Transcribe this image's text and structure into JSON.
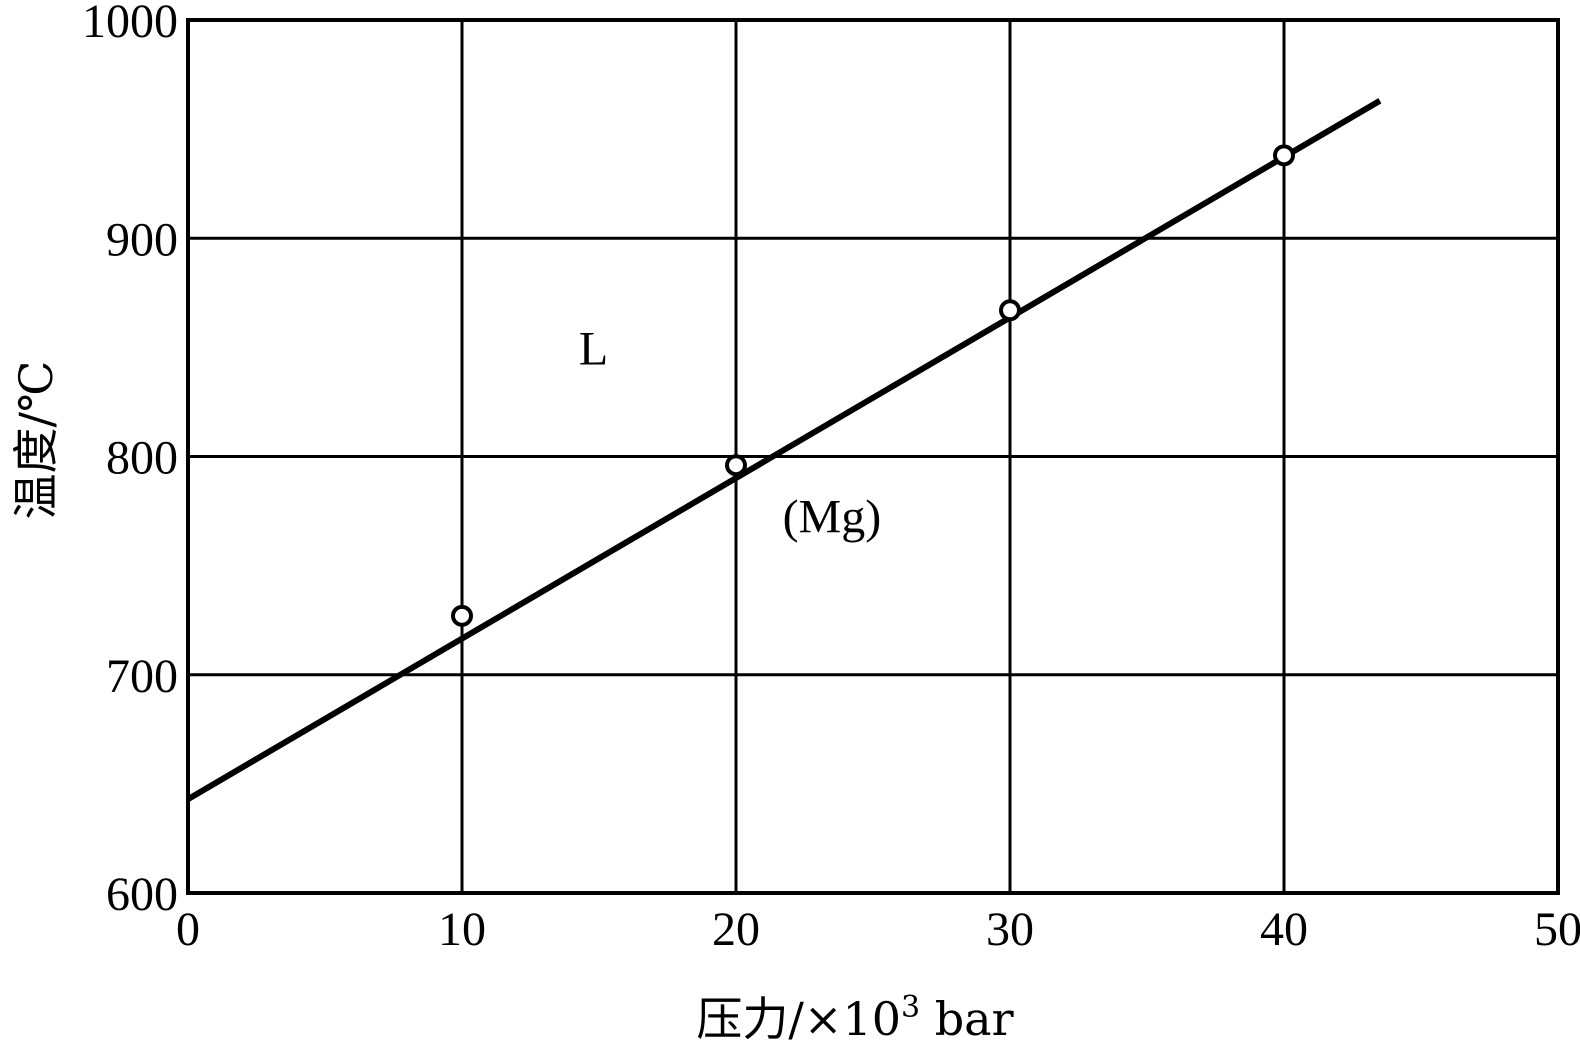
{
  "chart_data": {
    "type": "line",
    "title": "",
    "xlabel": "压力/×10",
    "xlabel_sup": "3",
    "xlabel_unit": " bar",
    "ylabel": "温度/℃",
    "xlim": [
      0,
      50
    ],
    "ylim": [
      600,
      1000
    ],
    "x_ticks": [
      0,
      10,
      20,
      30,
      40,
      50
    ],
    "y_ticks": [
      600,
      700,
      800,
      900,
      1000
    ],
    "x_tick_labels": [
      "0",
      "10",
      "20",
      "30",
      "40",
      "50"
    ],
    "y_tick_labels": [
      "600",
      "700",
      "800",
      "900",
      "1000"
    ],
    "grid": true,
    "series": [
      {
        "line": {
          "x": [
            0,
            43.5
          ],
          "y": [
            643,
            963
          ]
        },
        "points": {
          "x": [
            10,
            20,
            30,
            40
          ],
          "y": [
            727,
            796,
            867,
            938
          ]
        }
      }
    ],
    "annotations": [
      {
        "text": "L",
        "x": 14.8,
        "y": 850
      },
      {
        "text": "(Mg)",
        "x": 23.5,
        "y": 773
      }
    ]
  }
}
